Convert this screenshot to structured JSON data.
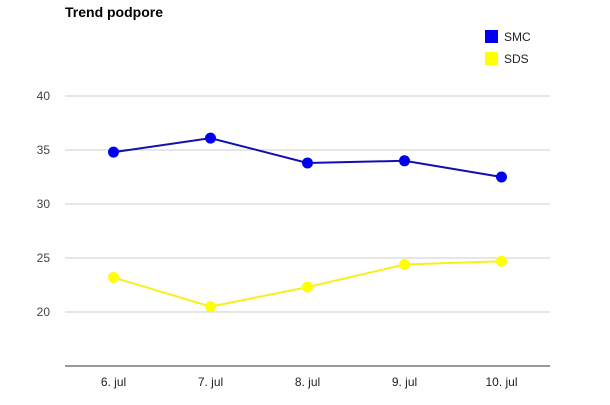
{
  "chart_data": {
    "type": "line",
    "title": "Trend podpore",
    "xlabel": "",
    "ylabel": "",
    "categories": [
      "6. jul",
      "7. jul",
      "8. jul",
      "9. jul",
      "10. jul"
    ],
    "series": [
      {
        "name": "SMC",
        "color": "#0000ee",
        "line_color": "#1010b0",
        "values": [
          34.8,
          36.1,
          33.8,
          34.0,
          32.5
        ]
      },
      {
        "name": "SDS",
        "color": "#ffff00",
        "line_color": "#f5f020",
        "values": [
          23.2,
          20.5,
          22.3,
          24.4,
          24.7
        ]
      }
    ],
    "ylim": [
      15,
      40
    ],
    "yticks": [
      20,
      25,
      30,
      35,
      40
    ],
    "grid": true,
    "legend_position": "top-right"
  }
}
